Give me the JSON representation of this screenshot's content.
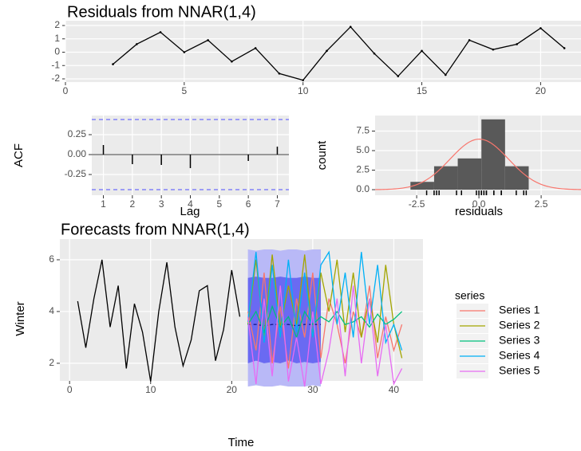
{
  "chart_data": [
    {
      "type": "line",
      "title": "Residuals from NNAR(1,4)",
      "x": [
        2,
        3,
        4,
        5,
        6,
        7,
        8,
        9,
        10,
        11,
        12,
        13,
        14,
        15,
        16,
        17,
        18,
        19,
        20,
        21
      ],
      "values": [
        -0.9,
        0.6,
        1.5,
        0.0,
        0.9,
        -0.7,
        0.3,
        -1.6,
        -2.1,
        0.1,
        1.9,
        -0.1,
        -1.8,
        0.1,
        -1.7,
        0.9,
        0.2,
        0.6,
        1.8,
        0.3
      ],
      "color": "#000000",
      "xlim": [
        0,
        21.7
      ],
      "xticks": [
        0,
        5,
        10,
        15,
        20
      ],
      "ylim": [
        -2.24,
        2.36
      ],
      "yticks": [
        -2,
        -1,
        0,
        1,
        2
      ],
      "grid": true
    },
    {
      "type": "acf",
      "x_label": "Lag",
      "y_label": "ACF",
      "x": [
        1,
        2,
        3,
        4,
        5,
        6,
        7
      ],
      "values": [
        0.12,
        -0.12,
        -0.13,
        -0.17,
        0.0,
        -0.08,
        0.1
      ],
      "color": "#000000",
      "bounds": [
        -0.44,
        0.44
      ],
      "bound_color": "#4C4CFF",
      "xlim": [
        0.6,
        7.4
      ],
      "xticks": [
        1,
        2,
        3,
        4,
        5,
        6,
        7
      ],
      "ylim": [
        -0.51,
        0.49
      ],
      "yticks": [
        {
          "value": -0.25,
          "label": "-0.25"
        },
        {
          "value": 0,
          "label": "0.00"
        },
        {
          "value": 0.25,
          "label": "0.25"
        }
      ],
      "grid": true
    },
    {
      "type": "histogram",
      "x_label": "residuals",
      "y_label": "count",
      "bins": [
        -2.75,
        -1.8,
        -0.85,
        0.1,
        1.05,
        2.0
      ],
      "counts": [
        1,
        3,
        4,
        9,
        3
      ],
      "color": "#595959",
      "density_color": "#F8766D",
      "xlim": [
        -4.17,
        4.1
      ],
      "xticks": [
        -2.5,
        {
          "value": 0,
          "label": "0.0"
        },
        2.5
      ],
      "ylim": [
        -0.71,
        9.49
      ],
      "yticks": [
        {
          "value": 0,
          "label": "0.0"
        },
        2.5,
        {
          "value": 5,
          "label": "5.0"
        },
        7.5
      ],
      "grid": true
    },
    {
      "type": "forecast",
      "title": "Forecasts from NNAR(1,4)",
      "x_label": "Time",
      "y_label": "Winter",
      "history": {
        "x": [
          1,
          2,
          3,
          4,
          5,
          6,
          7,
          8,
          9,
          10,
          11,
          12,
          13,
          14,
          15,
          16,
          17,
          18,
          19,
          20,
          21
        ],
        "values": [
          4.4,
          2.6,
          4.5,
          6.0,
          3.4,
          5.0,
          1.8,
          4.3,
          3.2,
          1.3,
          4.0,
          5.9,
          3.4,
          1.9,
          2.9,
          4.8,
          5.0,
          2.1,
          3.3,
          5.6,
          3.8
        ],
        "color": "#000000"
      },
      "intervals": {
        "x": [
          22,
          23,
          24,
          25,
          26,
          27,
          28,
          29,
          30,
          31
        ],
        "mean": [
          3.5,
          3.5,
          3.45,
          3.5,
          3.5,
          3.5,
          3.45,
          3.5,
          3.5,
          3.5
        ],
        "lower_80": [
          2.0,
          2.1,
          2.0,
          2.05,
          2.0,
          2.1,
          2.0,
          2.05,
          2.0,
          2.05
        ],
        "upper_80": [
          5.3,
          5.35,
          5.3,
          5.3,
          5.35,
          5.3,
          5.3,
          5.35,
          5.3,
          5.3
        ],
        "lower_95": [
          1.1,
          1.15,
          1.1,
          1.1,
          1.15,
          1.1,
          1.1,
          1.1,
          1.15,
          1.1
        ],
        "upper_95": [
          6.4,
          6.35,
          6.4,
          6.4,
          6.35,
          6.4,
          6.4,
          6.35,
          6.4,
          6.4
        ],
        "color_80": "#6A6AF2",
        "color_95": "#B9B9F7",
        "mean_color": "#1A1A8C"
      },
      "legend_title": "series",
      "series": [
        {
          "name": "Series 1",
          "color": "#F8766D",
          "x": [
            22,
            23,
            24,
            25,
            26,
            27,
            28,
            29,
            30,
            31,
            32,
            33,
            34,
            35,
            36,
            37,
            38,
            39,
            40,
            41
          ],
          "values": [
            4.0,
            2.5,
            5.5,
            2.0,
            4.2,
            1.8,
            4.5,
            3.0,
            5.5,
            2.2,
            4.5,
            3.5,
            2.0,
            4.0,
            3.0,
            5.0,
            2.2,
            3.8,
            2.5,
            3.5
          ]
        },
        {
          "name": "Series 2",
          "color": "#A3A500",
          "x": [
            22,
            23,
            24,
            25,
            26,
            27,
            28,
            29,
            30,
            31,
            32,
            33,
            34,
            35,
            36,
            37,
            38,
            39,
            40,
            41
          ],
          "values": [
            3.5,
            6.0,
            3.0,
            6.2,
            3.4,
            5.0,
            3.5,
            6.2,
            3.0,
            5.5,
            4.0,
            6.0,
            3.2,
            5.5,
            3.0,
            4.5,
            2.8,
            5.8,
            3.5,
            2.2
          ]
        },
        {
          "name": "Series 3",
          "color": "#00BF7D",
          "x": [
            22,
            23,
            24,
            25,
            26,
            27,
            28,
            29,
            30,
            31,
            32,
            33,
            34,
            35,
            36,
            37,
            38,
            39,
            40,
            41
          ],
          "values": [
            3.5,
            4.0,
            3.2,
            4.2,
            3.4,
            3.8,
            3.0,
            4.0,
            3.5,
            3.8,
            3.6,
            4.0,
            3.5,
            3.6,
            3.8,
            3.4,
            3.9,
            3.5,
            3.7,
            4.0
          ]
        },
        {
          "name": "Series 4",
          "color": "#00B0F6",
          "x": [
            22,
            23,
            24,
            25,
            26,
            27,
            28,
            29,
            30,
            31,
            32,
            33,
            34,
            35,
            36,
            37,
            38,
            39,
            40,
            41
          ],
          "values": [
            3.6,
            6.3,
            2.8,
            5.8,
            3.0,
            6.0,
            3.2,
            5.5,
            3.0,
            5.8,
            6.3,
            3.5,
            5.5,
            3.0,
            6.3,
            3.5,
            5.8,
            2.8,
            3.5,
            2.5
          ]
        },
        {
          "name": "Series 5",
          "color": "#E76BF3",
          "x": [
            22,
            23,
            24,
            25,
            26,
            27,
            28,
            29,
            30,
            31,
            32,
            33,
            34,
            35,
            36,
            37,
            38,
            39,
            40,
            41
          ],
          "values": [
            3.8,
            1.2,
            4.5,
            1.5,
            5.0,
            1.3,
            3.0,
            1.1,
            4.0,
            1.2,
            2.5,
            4.5,
            1.5,
            5.0,
            2.0,
            4.5,
            1.5,
            3.5,
            1.2,
            1.8
          ]
        }
      ],
      "xlim": [
        -1.2,
        43.6
      ],
      "xticks": [
        0,
        10,
        20,
        30,
        40
      ],
      "ylim": [
        1.32,
        6.8
      ],
      "yticks": [
        2,
        4,
        6
      ],
      "grid": true
    }
  ]
}
